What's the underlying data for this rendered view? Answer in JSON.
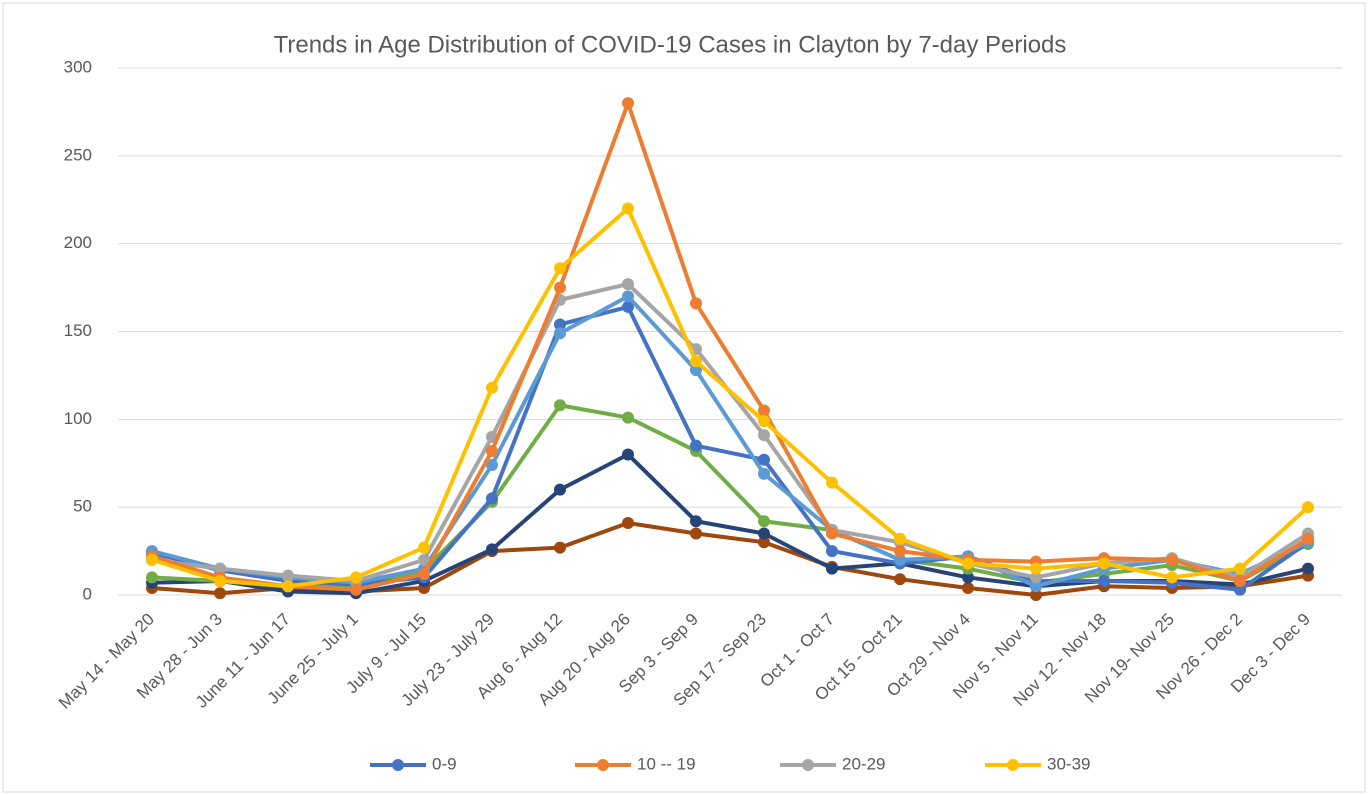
{
  "chart_data": {
    "type": "line",
    "title": "Trends in Age Distribution of COVID-19 Cases in Clayton by 7-day Periods",
    "categories": [
      "May 14 - May 20",
      "May 28 - Jun 3",
      "June 11 - Jun 17",
      "June 25 - July 1",
      "July 9 - Jul 15",
      "July 23 - July 29",
      "Aug 6 - Aug 12",
      "Aug 20 - Aug 26",
      "Sep 3 - Sep 9",
      "Sep 17 - Sep 23",
      "Oct 1 - Oct 7",
      "Oct 15 - Oct 21",
      "Oct 29 - Nov 4",
      "Nov 5 - Nov 11",
      "Nov 12 - Nov 18",
      "Nov 19- Nov 25",
      "Nov 26 - Dec 2",
      "Dec 3 - Dec 9"
    ],
    "series": [
      {
        "color": "#9e480e",
        "values": [
          4,
          1,
          4,
          2,
          4,
          25,
          27,
          41,
          35,
          30,
          16,
          9,
          4,
          0,
          5,
          4,
          5,
          11
        ]
      },
      {
        "color": "#264478",
        "values": [
          7,
          8,
          2,
          1,
          8,
          26,
          60,
          80,
          42,
          35,
          15,
          18,
          10,
          5,
          8,
          8,
          6,
          15
        ]
      },
      {
        "color": "#70ad47",
        "values": [
          10,
          8,
          5,
          5,
          14,
          53,
          108,
          101,
          82,
          42,
          37,
          20,
          15,
          7,
          12,
          17,
          8,
          29
        ]
      },
      {
        "name": "0-9",
        "color": "#4472c4",
        "values": [
          24,
          14,
          8,
          6,
          10,
          55,
          154,
          164,
          85,
          77,
          25,
          18,
          22,
          8,
          8,
          7,
          3,
          30
        ]
      },
      {
        "color": "#5b9bd5",
        "values": [
          25,
          15,
          10,
          7,
          15,
          74,
          149,
          170,
          128,
          69,
          37,
          20,
          22,
          5,
          15,
          20,
          12,
          30
        ]
      },
      {
        "name": "20-29",
        "color": "#a5a5a5",
        "values": [
          20,
          15,
          11,
          8,
          20,
          90,
          168,
          177,
          140,
          91,
          37,
          30,
          18,
          10,
          18,
          21,
          10,
          35
        ]
      },
      {
        "name": "10 -- 19",
        "color": "#ed7d31",
        "values": [
          22,
          10,
          5,
          3,
          12,
          82,
          175,
          280,
          166,
          105,
          35,
          25,
          20,
          19,
          21,
          20,
          8,
          32
        ]
      },
      {
        "name": "30-39",
        "color": "#ffc000",
        "values": [
          20,
          8,
          5,
          10,
          27,
          118,
          186,
          220,
          133,
          99,
          64,
          32,
          18,
          15,
          18,
          10,
          15,
          50
        ]
      }
    ],
    "legend_order": [
      3,
      6,
      5,
      7
    ],
    "ylim": [
      0,
      300
    ],
    "yticks": [
      0,
      50,
      100,
      150,
      200,
      250,
      300
    ],
    "grid": true
  }
}
